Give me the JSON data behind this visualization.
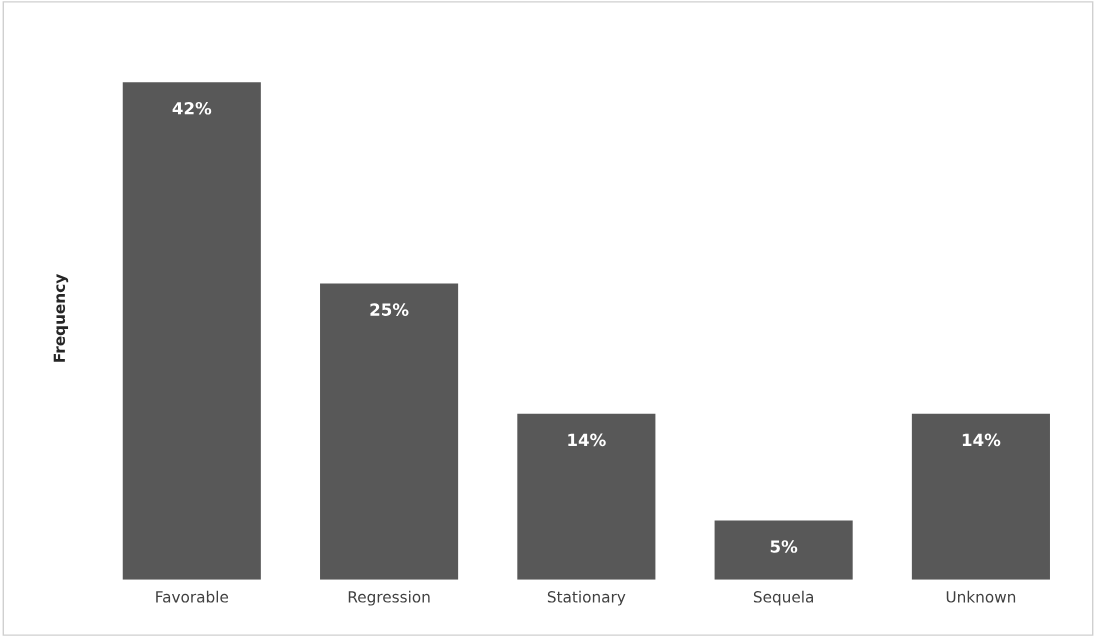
{
  "chart_data": {
    "type": "bar",
    "ylabel": "Frequency",
    "categories": [
      "Favorable",
      "Regression",
      "Stationary",
      "Sequela",
      "Unknown"
    ],
    "values": [
      42,
      25,
      14,
      5,
      14
    ],
    "value_labels": [
      "42%",
      "25%",
      "14%",
      "5%",
      "14%"
    ],
    "color": "#585858",
    "grid": false,
    "legend": false
  }
}
